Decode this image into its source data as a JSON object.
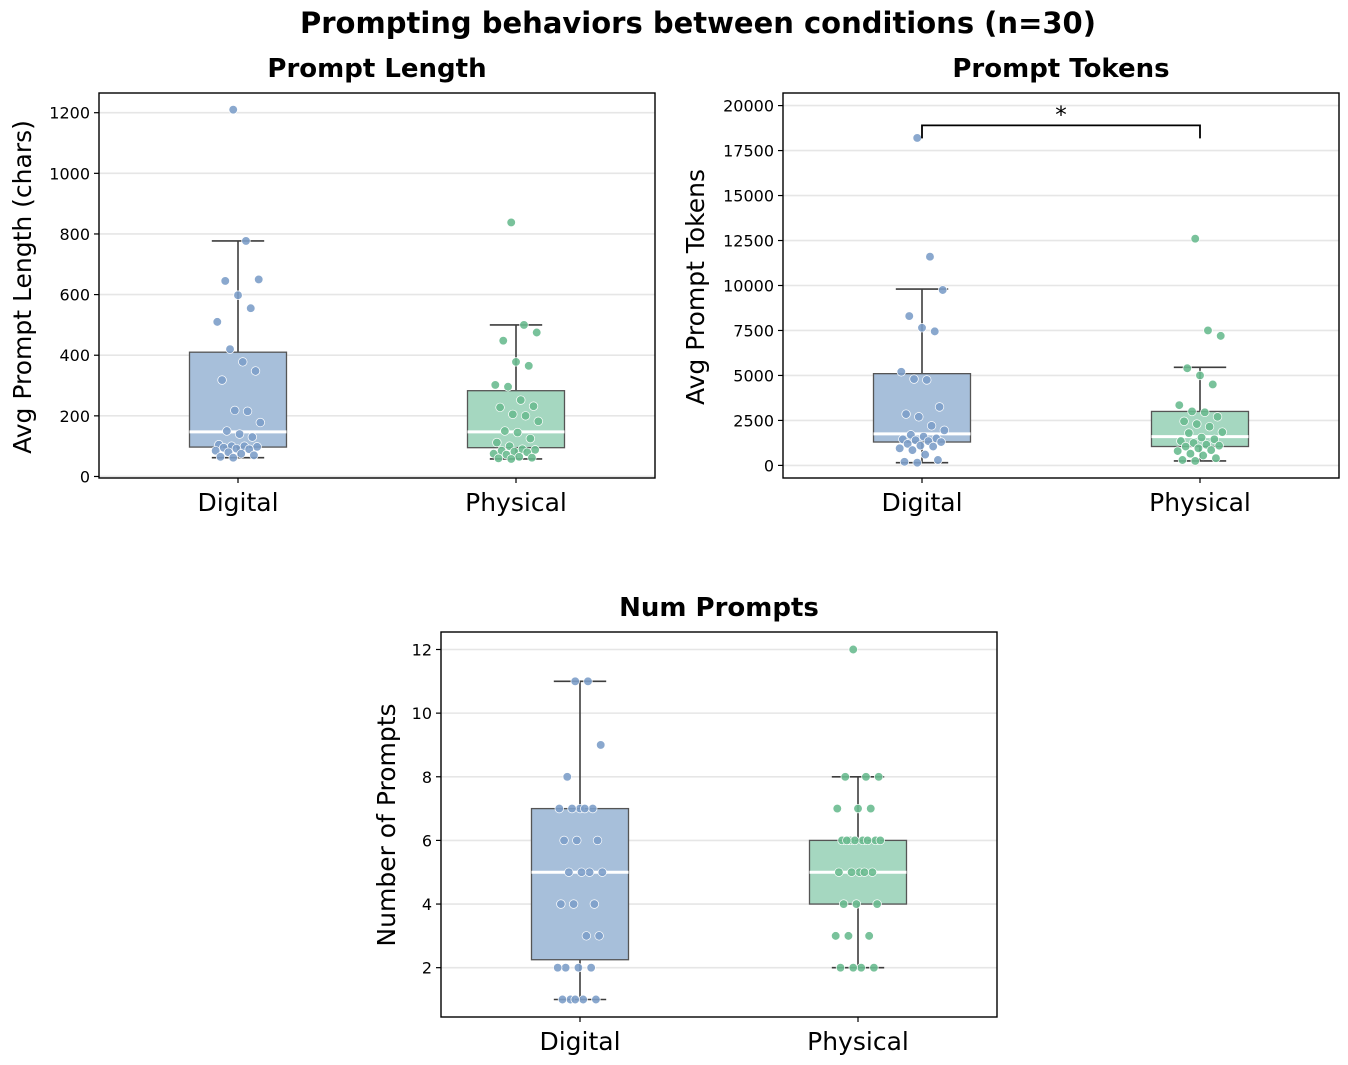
{
  "figure_title": "Prompting behaviors between conditions  (n=30)",
  "colors": {
    "digital_box": "#a7bfda",
    "digital_point": "#7d9fc9",
    "physical_box": "#a5d7c0",
    "physical_point": "#6abb90",
    "median": "#ffffff",
    "grid": "#e6e6e6"
  },
  "chart_data": [
    {
      "type": "box",
      "title": "Prompt Length",
      "ylabel": "Avg Prompt Length (chars)",
      "xlabel": "",
      "categories": [
        "Digital",
        "Physical"
      ],
      "yticks": [
        0,
        200,
        400,
        600,
        800,
        1000,
        1200
      ],
      "ylim": [
        -5,
        1265
      ],
      "grid": true,
      "significance": null,
      "boxes": [
        {
          "name": "Digital",
          "q1": 97,
          "median": 147,
          "q3": 410,
          "whisker_low": 62,
          "whisker_high": 777,
          "points": [
            1210,
            777,
            650,
            645,
            598,
            555,
            510,
            420,
            378,
            348,
            318,
            218,
            215,
            178,
            150,
            140,
            130,
            105,
            100,
            100,
            98,
            95,
            92,
            90,
            85,
            80,
            75,
            70,
            65,
            62
          ]
        },
        {
          "name": "Physical",
          "q1": 95,
          "median": 147,
          "q3": 283,
          "whisker_low": 58,
          "whisker_high": 500,
          "points": [
            838,
            500,
            475,
            448,
            378,
            365,
            302,
            296,
            252,
            232,
            228,
            205,
            200,
            182,
            150,
            145,
            125,
            112,
            100,
            90,
            88,
            85,
            82,
            80,
            75,
            72,
            65,
            62,
            60,
            58
          ]
        }
      ]
    },
    {
      "type": "box",
      "title": "Prompt Tokens",
      "ylabel": "Avg Prompt Tokens",
      "xlabel": "",
      "categories": [
        "Digital",
        "Physical"
      ],
      "yticks": [
        0,
        2500,
        5000,
        7500,
        10000,
        12500,
        15000,
        17500,
        20000
      ],
      "ylim": [
        -700,
        20700
      ],
      "grid": true,
      "significance": {
        "label": "*",
        "between": [
          "Digital",
          "Physical"
        ],
        "level": 18900
      },
      "boxes": [
        {
          "name": "Digital",
          "q1": 1300,
          "median": 1750,
          "q3": 5100,
          "whisker_low": 150,
          "whisker_high": 9800,
          "points": [
            18200,
            11600,
            9750,
            8300,
            7650,
            7450,
            5200,
            4800,
            4750,
            3250,
            2850,
            2700,
            2200,
            1950,
            1700,
            1600,
            1500,
            1450,
            1400,
            1350,
            1300,
            1200,
            1100,
            1050,
            950,
            850,
            600,
            300,
            200,
            150
          ]
        },
        {
          "name": "Physical",
          "q1": 1050,
          "median": 1600,
          "q3": 3000,
          "whisker_low": 250,
          "whisker_high": 5450,
          "points": [
            12600,
            7500,
            7200,
            5400,
            5000,
            4500,
            3350,
            3000,
            2950,
            2700,
            2450,
            2300,
            2150,
            1850,
            1800,
            1550,
            1450,
            1350,
            1250,
            1150,
            1100,
            1050,
            950,
            850,
            800,
            650,
            550,
            400,
            300,
            250
          ]
        }
      ]
    },
    {
      "type": "box",
      "title": "Num Prompts",
      "ylabel": "Number of Prompts",
      "xlabel": "",
      "categories": [
        "Digital",
        "Physical"
      ],
      "yticks": [
        2,
        4,
        6,
        8,
        10,
        12
      ],
      "ylim": [
        0.45,
        12.55
      ],
      "grid": true,
      "significance": null,
      "boxes": [
        {
          "name": "Digital",
          "q1": 2.25,
          "median": 5,
          "q3": 7,
          "whisker_low": 1,
          "whisker_high": 11,
          "points": [
            11,
            11,
            9,
            8,
            7,
            7,
            7,
            7,
            7,
            6,
            6,
            6,
            5,
            5,
            5,
            5,
            4,
            4,
            4,
            3,
            3,
            2,
            2,
            2,
            2,
            1,
            1,
            1,
            1,
            1
          ]
        },
        {
          "name": "Physical",
          "q1": 4,
          "median": 5,
          "q3": 6,
          "whisker_low": 2,
          "whisker_high": 8,
          "points": [
            12,
            8,
            8,
            8,
            7,
            7,
            7,
            6,
            6,
            6,
            6,
            6,
            6,
            6,
            6,
            5,
            5,
            5,
            5,
            5,
            4,
            4,
            4,
            3,
            3,
            3,
            2,
            2,
            2,
            2
          ]
        }
      ]
    }
  ]
}
